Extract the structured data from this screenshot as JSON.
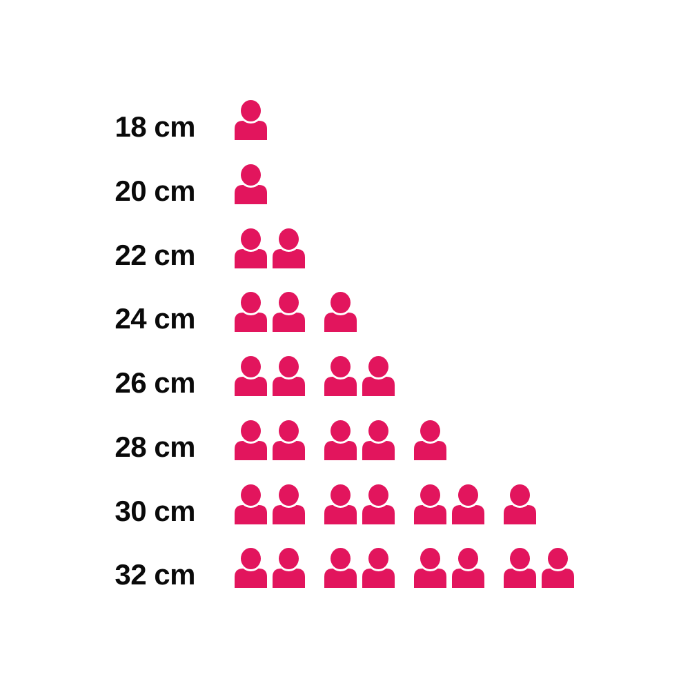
{
  "chart_data": {
    "type": "bar",
    "style": "pictogram",
    "orientation": "horizontal",
    "categories": [
      "18 cm",
      "20 cm",
      "22 cm",
      "24 cm",
      "26 cm",
      "28 cm",
      "30 cm",
      "32 cm"
    ],
    "values": [
      1,
      1,
      2,
      3,
      4,
      5,
      7,
      8
    ],
    "title": "",
    "xlabel": "",
    "ylabel": "",
    "unit_icon": "person-icon",
    "icon_unit_value": 1,
    "icon_group_size": 2,
    "legend": "none",
    "grid": false,
    "colors": {
      "icon": "#E2155D",
      "label_text": "#0a0a0a",
      "background": "#ffffff"
    }
  }
}
